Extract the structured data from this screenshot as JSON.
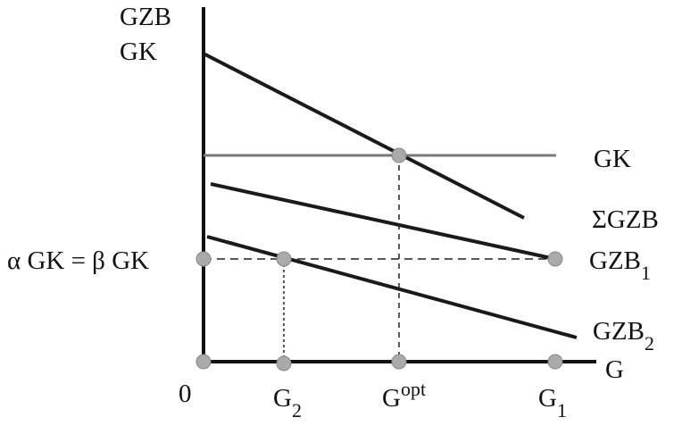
{
  "axes": {
    "y_label_line1": "GZB",
    "y_label_line2": "GK",
    "x_label": "G",
    "origin_label": "0"
  },
  "curves": {
    "gk": {
      "label": "GK",
      "color": "#777777"
    },
    "sum_gzb": {
      "label": "ΣGZB",
      "color": "#1a1a1a"
    },
    "gzb1": {
      "label_main": "GZB",
      "label_sub": "1",
      "color": "#1a1a1a"
    },
    "gzb2": {
      "label_main": "GZB",
      "label_sub": "2",
      "color": "#1a1a1a"
    }
  },
  "y_level_label": "α GK = β GK",
  "x_ticks": {
    "g2": {
      "main": "G",
      "sub": "2"
    },
    "gopt": {
      "main": "G",
      "sup": "opt"
    },
    "g1": {
      "main": "G",
      "sub": "1"
    }
  },
  "colors": {
    "marker": "#aaaaaa",
    "marker_stroke": "#888888",
    "axis": "#111111"
  }
}
